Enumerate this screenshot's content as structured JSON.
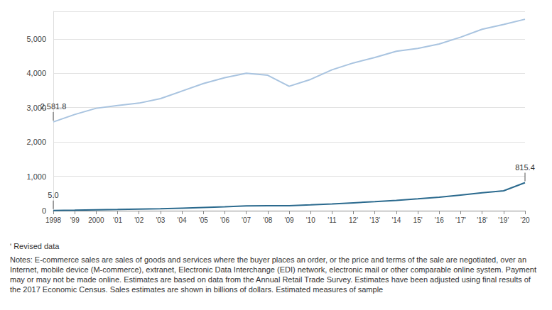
{
  "chart_data": {
    "type": "line",
    "categories": [
      "1998",
      "'99",
      "2000",
      "'01",
      "'02",
      "'03",
      "'04",
      "'05",
      "'06",
      "'07",
      "'08",
      "'09",
      "'10",
      "'11",
      "12'",
      "'13'",
      "'14",
      "15'",
      "'16",
      "'17'",
      "'18'",
      "'19'",
      "'20"
    ],
    "series": [
      {
        "color": "#a9c4e0",
        "values": [
          2581.8,
          2800,
          2980,
          3060,
          3130,
          3260,
          3480,
          3700,
          3870,
          4000,
          3940,
          3620,
          3820,
          4100,
          4300,
          4460,
          4640,
          4720,
          4850,
          5050,
          5280,
          5420,
          5570
        ]
      },
      {
        "color": "#2b6a8e",
        "values": [
          5.0,
          15,
          28,
          34,
          45,
          57,
          73,
          93,
          114,
          137,
          142,
          144,
          169,
          198,
          229,
          262,
          301,
          344,
          392,
          456,
          519,
          578,
          815.4
        ]
      }
    ],
    "ylim": [
      0,
      5800
    ],
    "yticks": [
      0,
      {
        "value": 1000,
        "label": "1,000"
      },
      {
        "value": 2000,
        "label": "2,000"
      },
      {
        "value": 3000,
        "label": "3,000"
      },
      {
        "value": 4000,
        "label": "4,000"
      },
      {
        "value": 5000,
        "label": "5,000"
      }
    ],
    "grid": true,
    "annotations": [
      {
        "x": "1998",
        "y": 2581.8,
        "label": "2,581.8"
      },
      {
        "x": "1998",
        "y": 5.0,
        "label": "5.0"
      },
      {
        "x": "'20",
        "y": 815.4,
        "label": "815.4"
      }
    ],
    "notes": [
      "ʹ Revised data",
      "Notes: E-commerce sales are sales of goods and services where the buyer places an order, or the price and terms of the sale are negotiated, over an Internet, mobile device (M-commerce), extranet, Electronic Data Interchange (EDI) network, electronic mail or other comparable online system. Payment may or may not be made online. Estimates are based on data from the Annual Retail Trade Survey. Estimates have been adjusted using final results of the 2017 Economic Census. Sales estimates are shown in billions of dollars. Estimated measures of sample"
    ]
  }
}
